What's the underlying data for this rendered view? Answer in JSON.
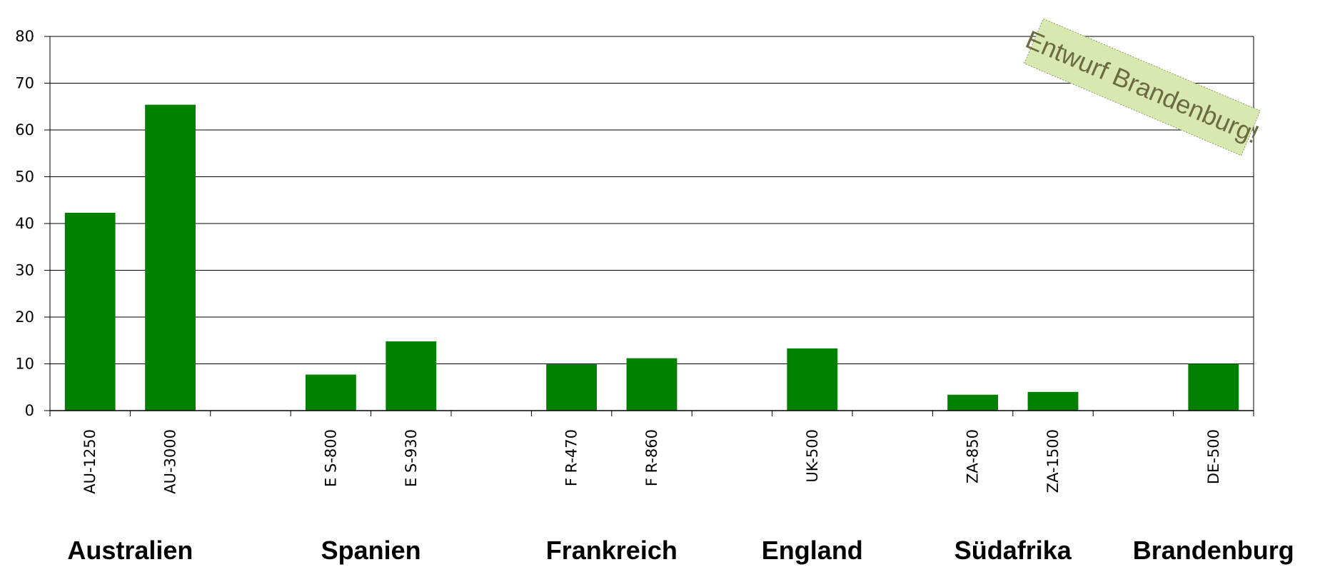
{
  "chart_data": {
    "type": "bar",
    "categories": [
      "AU-1250",
      "AU-3000",
      "",
      "ES-800",
      "ES-930",
      "",
      "FR-470",
      "FR-860",
      "",
      "UK-500",
      "",
      "ZA-850",
      "ZA-1500",
      "",
      "DE-500"
    ],
    "category_labels": [
      "AU-1250",
      "AU-3000",
      "",
      "E S-800",
      "E S-930",
      "",
      "F R-470",
      "F R-860",
      "",
      "UK-500",
      "",
      "ZA-850",
      "ZA-1500",
      "",
      "DE-500"
    ],
    "values": [
      42.3,
      65.4,
      null,
      7.7,
      14.8,
      null,
      9.9,
      11.2,
      null,
      13.3,
      null,
      3.4,
      4.0,
      null,
      10.0
    ],
    "groups": [
      {
        "label": "Australien",
        "categories": [
          "AU-1250",
          "AU-3000"
        ]
      },
      {
        "label": "Spanien",
        "categories": [
          "ES-800",
          "ES-930"
        ]
      },
      {
        "label": "Frankreich",
        "categories": [
          "FR-470",
          "FR-860"
        ]
      },
      {
        "label": "England",
        "categories": [
          "UK-500"
        ]
      },
      {
        "label": "Südafrika",
        "categories": [
          "ZA-850",
          "ZA-1500"
        ]
      },
      {
        "label": "Brandenburg",
        "categories": [
          "DE-500"
        ]
      }
    ],
    "title": "",
    "xlabel": "",
    "ylabel": "",
    "ylim": [
      0,
      80
    ],
    "yticks": [
      0,
      10,
      20,
      30,
      40,
      50,
      60,
      70,
      80
    ],
    "grid": true,
    "legend": "none",
    "bar_color": "#008000"
  },
  "stamp": {
    "text": "Entwurf Brandenburg!",
    "fill": "#d9e8b0",
    "text_color": "#6b6b40"
  }
}
